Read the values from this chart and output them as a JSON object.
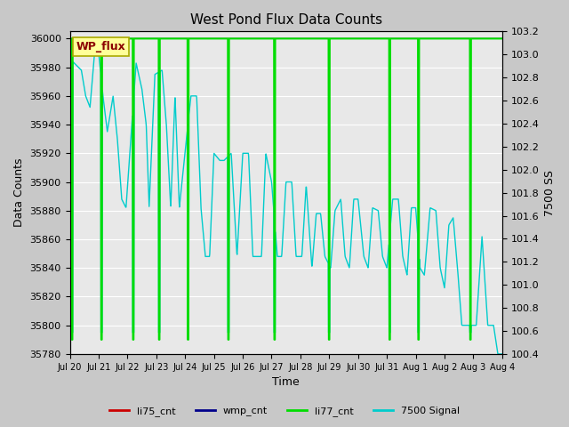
{
  "title": "West Pond Flux Data Counts",
  "xlabel": "Time",
  "ylabel_left": "Data Counts",
  "ylabel_right": "7500 SS",
  "annotation_text": "WP_flux",
  "annotation_box_facecolor": "#ffff99",
  "annotation_box_edgecolor": "#aaaa00",
  "annotation_text_color": "#8b0000",
  "background_color": "#c8c8c8",
  "plot_bg_color": "#e8e8e8",
  "ylim_left": [
    35780,
    36005
  ],
  "ylim_right": [
    100.4,
    103.2
  ],
  "li77_color": "#00dd00",
  "signal_color": "#00cccc",
  "li75_color": "#cc0000",
  "wmp_color": "#00008b",
  "legend_labels": [
    "li75_cnt",
    "wmp_cnt",
    "li77_cnt",
    "7500 Signal"
  ],
  "legend_colors": [
    "#cc0000",
    "#00008b",
    "#00dd00",
    "#00cccc"
  ],
  "yticks_left": [
    35780,
    35800,
    35820,
    35840,
    35860,
    35880,
    35900,
    35920,
    35940,
    35960,
    35980,
    36000
  ],
  "yticks_right": [
    100.4,
    100.6,
    100.8,
    101.0,
    101.2,
    101.4,
    101.6,
    101.8,
    102.0,
    102.2,
    102.4,
    102.6,
    102.8,
    103.0,
    103.2
  ],
  "xtick_labels": [
    "Jul 20",
    "Jul 21",
    "Jul 22",
    "Jul 23",
    "Jul 24",
    "Jul 25",
    "Jul 26",
    "Jul 27",
    "Jul 28",
    "Jul 29",
    "Jul 30",
    "Jul 31",
    "Aug 1",
    "Aug 2",
    "Aug 3",
    "Aug 4"
  ],
  "xlim": [
    0,
    15
  ],
  "li77_base": 36000,
  "li77_drop": 35790,
  "li77_drop_days": [
    0.08,
    1.1,
    2.2,
    3.1,
    4.1,
    5.5,
    7.1,
    9.0,
    11.1,
    12.1,
    13.9
  ],
  "signal_peaks": [
    [
      0.15,
      35983
    ],
    [
      0.4,
      35978
    ],
    [
      0.55,
      35960
    ],
    [
      0.7,
      35952
    ],
    [
      0.85,
      35988
    ],
    [
      1.0,
      35990
    ],
    [
      1.15,
      35960
    ],
    [
      1.3,
      35935
    ],
    [
      1.5,
      35960
    ],
    [
      1.65,
      35930
    ],
    [
      1.8,
      35888
    ],
    [
      1.95,
      35882
    ],
    [
      2.3,
      35983
    ],
    [
      2.5,
      35965
    ],
    [
      2.65,
      35940
    ],
    [
      2.75,
      35882
    ],
    [
      2.95,
      35975
    ],
    [
      3.2,
      35978
    ],
    [
      3.35,
      35940
    ],
    [
      3.5,
      35882
    ],
    [
      3.65,
      35960
    ],
    [
      3.8,
      35882
    ],
    [
      4.2,
      35960
    ],
    [
      4.4,
      35960
    ],
    [
      4.55,
      35882
    ],
    [
      4.7,
      35848
    ],
    [
      4.85,
      35848
    ],
    [
      5.0,
      35920
    ],
    [
      5.2,
      35915
    ],
    [
      5.35,
      35915
    ],
    [
      5.6,
      35920
    ],
    [
      5.8,
      35848
    ],
    [
      6.0,
      35920
    ],
    [
      6.2,
      35920
    ],
    [
      6.35,
      35848
    ],
    [
      6.5,
      35848
    ],
    [
      6.65,
      35848
    ],
    [
      6.8,
      35920
    ],
    [
      7.0,
      35900
    ],
    [
      7.2,
      35848
    ],
    [
      7.35,
      35848
    ],
    [
      7.5,
      35900
    ],
    [
      7.7,
      35900
    ],
    [
      7.85,
      35848
    ],
    [
      8.05,
      35848
    ],
    [
      8.2,
      35898
    ],
    [
      8.4,
      35840
    ],
    [
      8.55,
      35878
    ],
    [
      8.7,
      35878
    ],
    [
      8.85,
      35848
    ],
    [
      9.05,
      35840
    ],
    [
      9.2,
      35880
    ],
    [
      9.4,
      35888
    ],
    [
      9.55,
      35848
    ],
    [
      9.7,
      35840
    ],
    [
      9.85,
      35888
    ],
    [
      10.0,
      35888
    ],
    [
      10.2,
      35848
    ],
    [
      10.35,
      35840
    ],
    [
      10.5,
      35882
    ],
    [
      10.7,
      35880
    ],
    [
      10.85,
      35848
    ],
    [
      11.0,
      35840
    ],
    [
      11.2,
      35888
    ],
    [
      11.4,
      35888
    ],
    [
      11.55,
      35848
    ],
    [
      11.7,
      35835
    ],
    [
      11.85,
      35882
    ],
    [
      12.0,
      35882
    ],
    [
      12.15,
      35840
    ],
    [
      12.3,
      35835
    ],
    [
      12.5,
      35882
    ],
    [
      12.7,
      35880
    ],
    [
      12.85,
      35840
    ],
    [
      13.0,
      35826
    ],
    [
      13.15,
      35870
    ],
    [
      13.3,
      35875
    ],
    [
      13.45,
      35840
    ],
    [
      13.6,
      35800
    ],
    [
      13.75,
      35800
    ],
    [
      13.85,
      35800
    ],
    [
      14.0,
      35800
    ],
    [
      14.1,
      35800
    ],
    [
      14.3,
      35862
    ],
    [
      14.5,
      35800
    ],
    [
      14.7,
      35800
    ],
    [
      14.85,
      35780
    ],
    [
      15.0,
      35780
    ]
  ]
}
